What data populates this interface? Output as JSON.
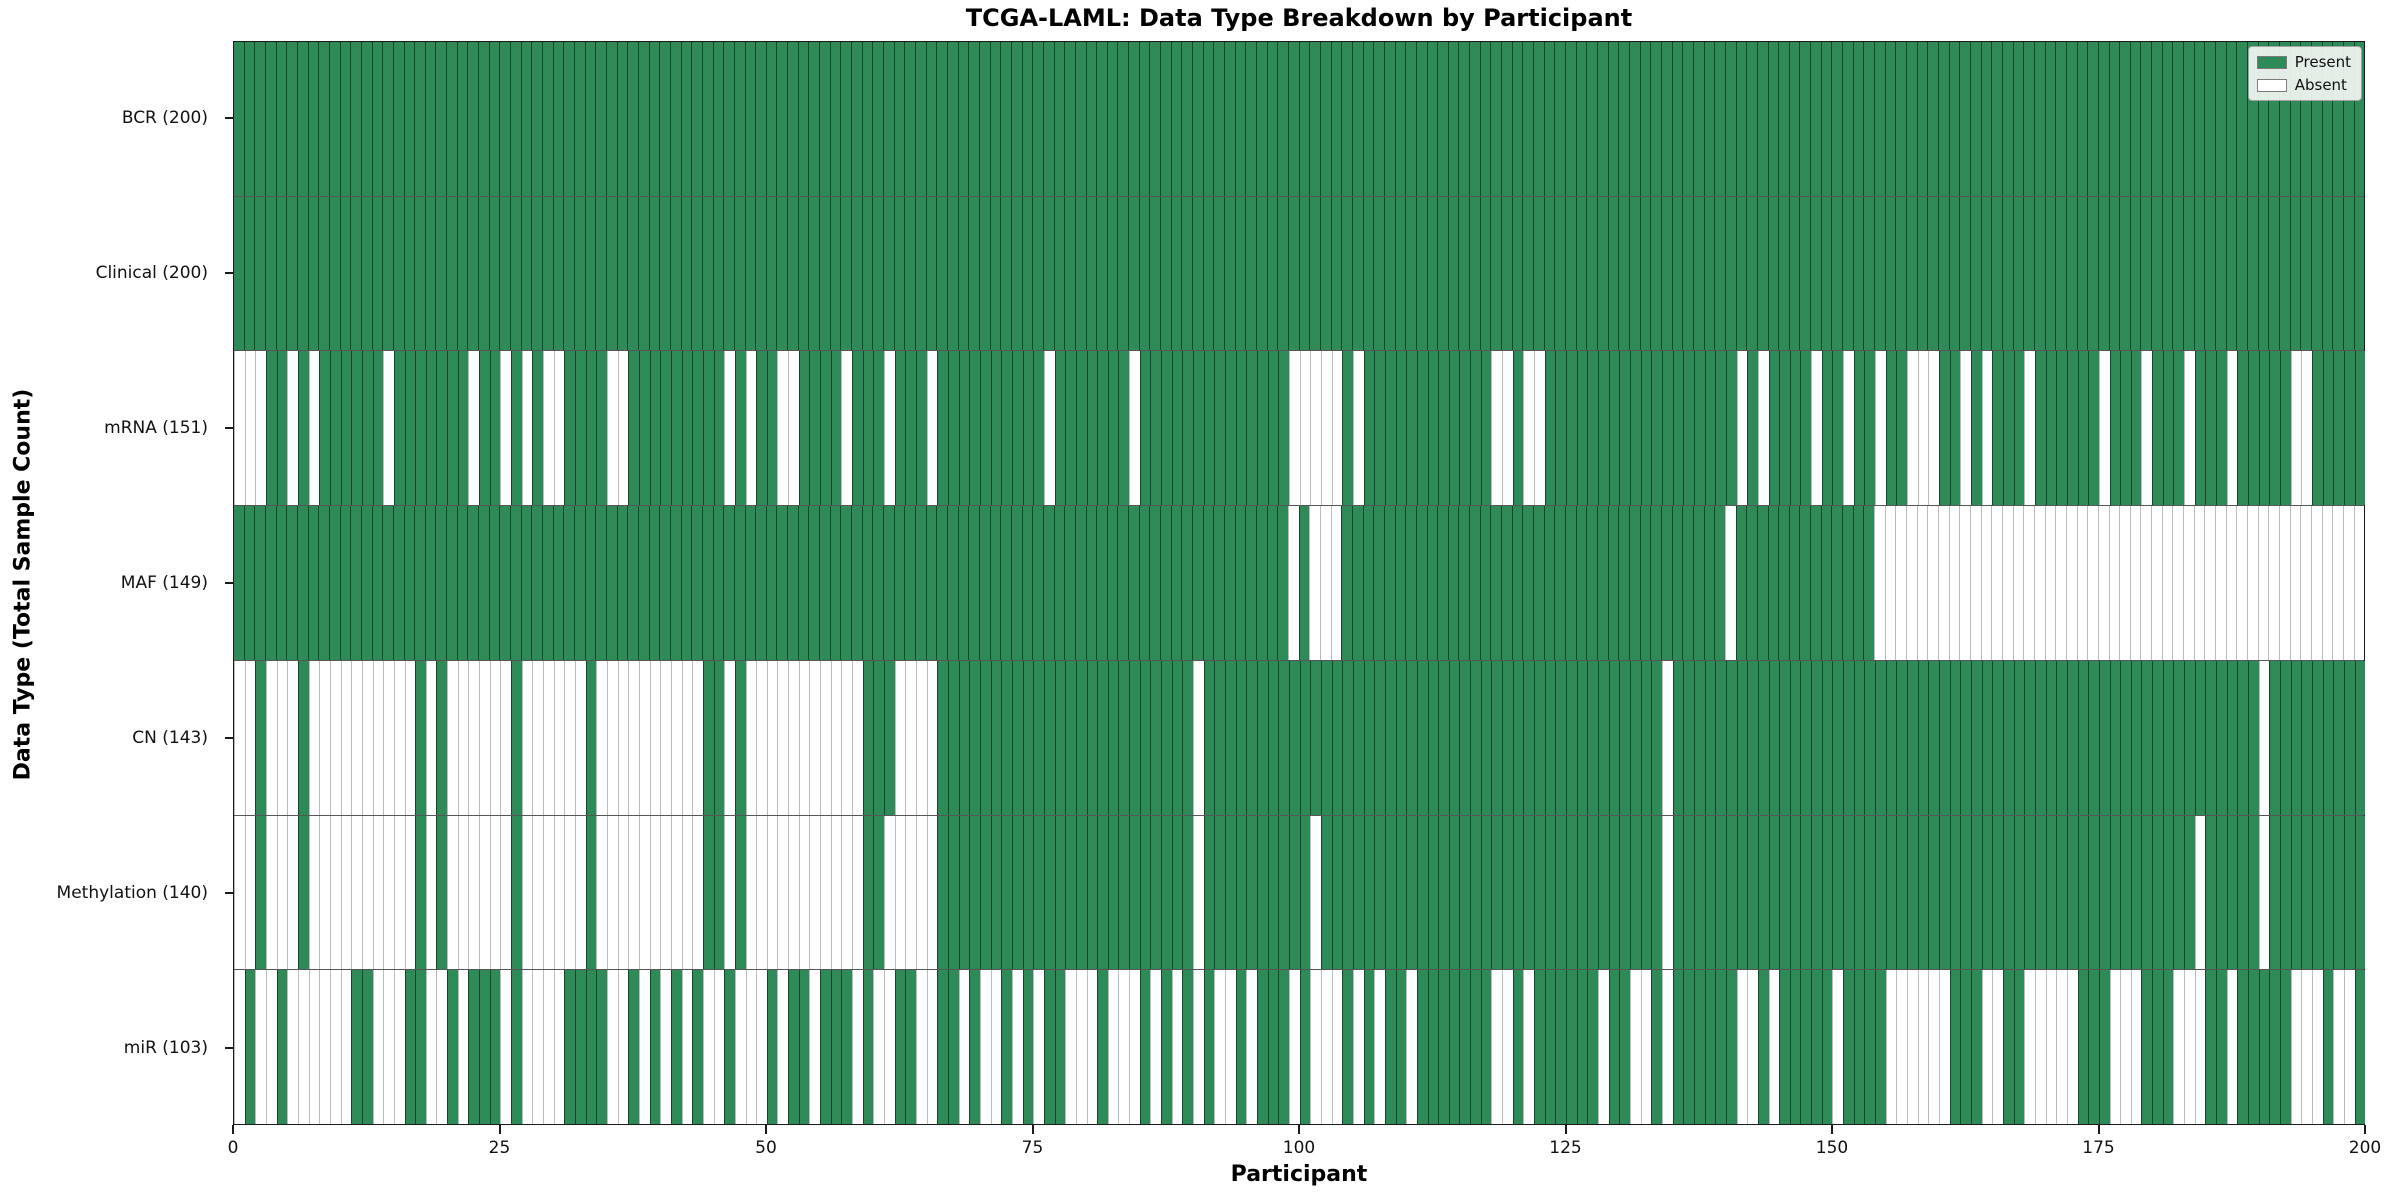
{
  "chart_data": {
    "type": "heatmap",
    "title": "TCGA-LAML: Data Type Breakdown by Participant",
    "xlabel": "Participant",
    "ylabel": "Data Type (Total Sample Count)",
    "n_participants": 200,
    "x_ticks": [
      0,
      25,
      50,
      75,
      100,
      125,
      150,
      175,
      200
    ],
    "grid": false,
    "legend_position": "upper right",
    "colors": {
      "present": "#2e8b57",
      "absent": "#ffffff"
    },
    "legend": [
      {
        "label": "Present",
        "color": "#2e8b57"
      },
      {
        "label": "Absent",
        "color": "#ffffff"
      }
    ],
    "rows": [
      {
        "label": "BCR (200)",
        "name": "BCR",
        "total_present": 200,
        "absent": []
      },
      {
        "label": "Clinical (200)",
        "name": "Clinical",
        "total_present": 200,
        "absent": []
      },
      {
        "label": "mRNA (151)",
        "name": "mRNA",
        "total_present": 151,
        "absent": [
          0,
          1,
          2,
          5,
          7,
          14,
          22,
          25,
          27,
          29,
          30,
          35,
          36,
          46,
          48,
          51,
          52,
          57,
          61,
          65,
          76,
          84,
          99,
          100,
          101,
          102,
          103,
          105,
          118,
          119,
          121,
          122,
          141,
          143,
          148,
          151,
          154,
          157,
          158,
          159,
          162,
          164,
          168,
          175,
          179,
          183,
          187,
          193,
          194
        ]
      },
      {
        "label": "MAF (149)",
        "name": "MAF",
        "total_present": 149,
        "absent": [
          99,
          101,
          102,
          103,
          140,
          154,
          155,
          156,
          157,
          158,
          159,
          160,
          161,
          162,
          163,
          164,
          165,
          166,
          167,
          168,
          169,
          170,
          171,
          172,
          173,
          174,
          175,
          176,
          177,
          178,
          179,
          180,
          181,
          182,
          183,
          184,
          185,
          186,
          187,
          188,
          189,
          190,
          191,
          192,
          193,
          194,
          195,
          196,
          197,
          198,
          199
        ]
      },
      {
        "label": "CN (143)",
        "name": "CN",
        "total_present": 143,
        "absent": [
          0,
          1,
          3,
          4,
          5,
          7,
          8,
          9,
          10,
          11,
          12,
          13,
          14,
          15,
          16,
          18,
          20,
          21,
          22,
          23,
          24,
          25,
          27,
          28,
          29,
          30,
          31,
          32,
          34,
          35,
          36,
          37,
          38,
          39,
          40,
          41,
          42,
          43,
          46,
          48,
          49,
          50,
          51,
          52,
          53,
          54,
          55,
          56,
          57,
          58,
          62,
          63,
          64,
          65,
          90,
          134,
          190
        ]
      },
      {
        "label": "Methylation (140)",
        "name": "Methylation",
        "total_present": 140,
        "absent": [
          0,
          1,
          3,
          4,
          5,
          7,
          8,
          9,
          10,
          11,
          12,
          13,
          14,
          15,
          16,
          18,
          20,
          21,
          22,
          23,
          24,
          25,
          27,
          28,
          29,
          30,
          31,
          32,
          34,
          35,
          36,
          37,
          38,
          39,
          40,
          41,
          42,
          43,
          46,
          48,
          49,
          50,
          51,
          52,
          53,
          54,
          55,
          56,
          57,
          58,
          61,
          62,
          63,
          64,
          65,
          90,
          101,
          134,
          184,
          190
        ]
      },
      {
        "label": "miR (103)",
        "name": "miR",
        "total_present": 103,
        "absent": [
          0,
          2,
          3,
          5,
          6,
          7,
          8,
          9,
          10,
          13,
          14,
          15,
          18,
          19,
          21,
          25,
          27,
          28,
          29,
          30,
          35,
          36,
          38,
          40,
          42,
          44,
          45,
          47,
          48,
          49,
          51,
          54,
          58,
          60,
          61,
          64,
          65,
          68,
          70,
          71,
          73,
          75,
          78,
          79,
          80,
          82,
          83,
          84,
          86,
          88,
          90,
          92,
          93,
          95,
          99,
          101,
          102,
          103,
          105,
          107,
          110,
          118,
          119,
          121,
          128,
          131,
          132,
          134,
          141,
          142,
          144,
          150,
          155,
          156,
          157,
          158,
          159,
          160,
          164,
          165,
          168,
          169,
          170,
          171,
          172,
          176,
          177,
          178,
          182,
          183,
          184,
          187,
          193,
          194,
          195,
          197,
          198
        ]
      }
    ]
  }
}
